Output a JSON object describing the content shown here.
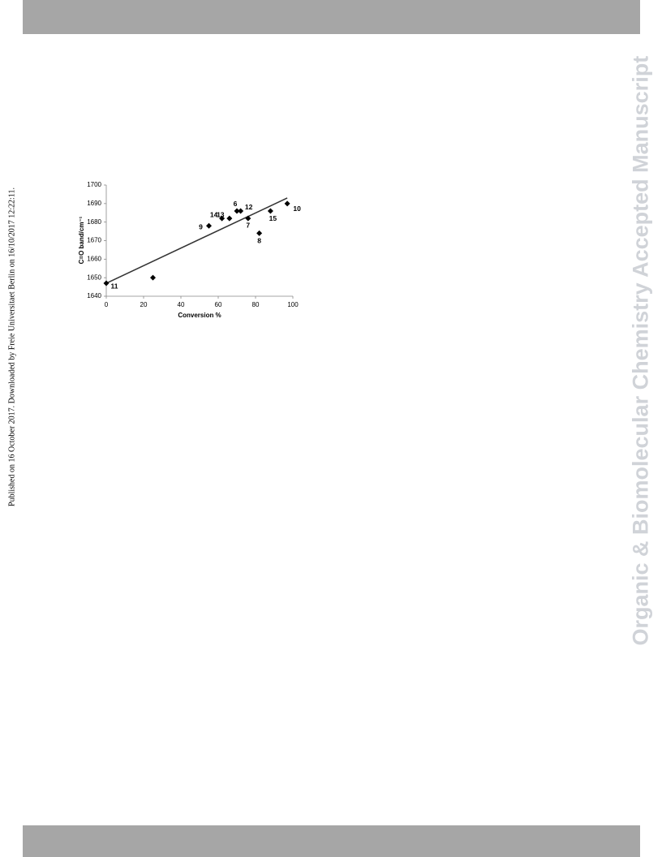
{
  "side_note": "Published on 16 October 2017. Downloaded by Freie Universitaet Berlin on 16/10/2017 12:22:11.",
  "watermark": "Organic & Biomolecular Chemistry Accepted Manuscript",
  "chart_data": {
    "type": "scatter",
    "x_label": "Conversion %",
    "y_label": "C=O band/cm⁻¹",
    "x": [
      0,
      25,
      55,
      62,
      66,
      70,
      72,
      76,
      82,
      88,
      97
    ],
    "values": [
      1647,
      1650,
      1678,
      1682,
      1682,
      1686,
      1686,
      1682,
      1674,
      1686,
      1690
    ],
    "point_labels": [
      "11",
      null,
      "9",
      "14",
      "13",
      "6",
      "12",
      "7",
      "8",
      "15",
      "10"
    ],
    "color": "#000000",
    "trendline": {
      "x": [
        0,
        97
      ],
      "values": [
        1647,
        1693
      ]
    },
    "xlim": [
      0,
      100
    ],
    "xticks": [
      0,
      20,
      40,
      60,
      80,
      100
    ],
    "ylim": [
      1640,
      1700
    ],
    "yticks": [
      1640,
      1650,
      1660,
      1670,
      1680,
      1690,
      1700
    ]
  }
}
